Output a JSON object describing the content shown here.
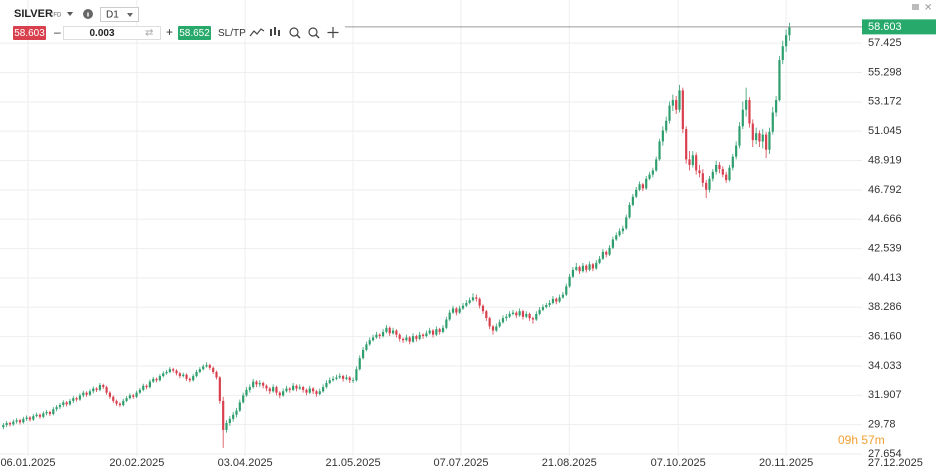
{
  "toolbar": {
    "symbol": "SILVER",
    "instrument_type": "CFD",
    "timeframe": "D1",
    "sell_price": "58.603",
    "volume": "0.003",
    "buy_price": "58.652",
    "sl_tp": "SL/TP"
  },
  "countdown": "09h 57m",
  "chart_data": {
    "type": "candlestick",
    "up_color": "#2f9e6e",
    "down_color": "#d9404e",
    "grid": true,
    "current_price": 58.603,
    "current_price_color": "#26a96a",
    "ylim": [
      27.51,
      60.55
    ],
    "yticks": [
      27.654,
      29.78,
      31.907,
      34.033,
      {
        "value": 36.16,
        "label": "36.160"
      },
      38.286,
      40.413,
      42.539,
      44.666,
      46.792,
      48.919,
      51.045,
      53.172,
      55.298,
      57.425
    ],
    "xlim": [
      -1,
      280
    ],
    "xticks": [
      {
        "value": 7.4,
        "label": "06.01.2025"
      },
      {
        "value": 40.1,
        "label": "20.02.2025"
      },
      {
        "value": 72.6,
        "label": "03.04.2025"
      },
      {
        "value": 105,
        "label": "21.05.2025"
      },
      {
        "value": 137.4,
        "label": "07.07.2025"
      },
      {
        "value": 169.9,
        "label": "21.08.2025"
      },
      {
        "value": 202.6,
        "label": "07.10.2025"
      },
      {
        "value": 235,
        "label": "20.11.2025"
      },
      {
        "value": 267.8,
        "label": "27.12.2025"
      }
    ],
    "candles": [
      [
        29.6,
        29.9,
        29.45,
        29.75
      ],
      [
        29.75,
        30.05,
        29.6,
        29.9
      ],
      [
        29.9,
        30.0,
        29.65,
        29.8
      ],
      [
        29.8,
        30.15,
        29.7,
        30.0
      ],
      [
        30.0,
        30.25,
        29.85,
        30.1
      ],
      [
        30.1,
        30.2,
        29.8,
        29.95
      ],
      [
        29.95,
        30.35,
        29.85,
        30.2
      ],
      [
        30.2,
        30.45,
        30.05,
        30.3
      ],
      [
        30.3,
        30.4,
        30.0,
        30.15
      ],
      [
        30.15,
        30.55,
        30.05,
        30.4
      ],
      [
        30.4,
        30.65,
        30.3,
        30.5
      ],
      [
        30.5,
        30.6,
        30.2,
        30.35
      ],
      [
        30.35,
        30.75,
        30.25,
        30.6
      ],
      [
        30.6,
        30.85,
        30.45,
        30.7
      ],
      [
        30.7,
        30.8,
        30.4,
        30.55
      ],
      [
        30.55,
        31.05,
        30.45,
        30.9
      ],
      [
        30.9,
        31.2,
        30.75,
        31.05
      ],
      [
        31.05,
        31.35,
        30.9,
        31.2
      ],
      [
        31.2,
        31.55,
        31.05,
        31.4
      ],
      [
        31.4,
        31.5,
        31.1,
        31.25
      ],
      [
        31.25,
        31.65,
        31.15,
        31.5
      ],
      [
        31.5,
        31.85,
        31.35,
        31.7
      ],
      [
        31.7,
        31.8,
        31.45,
        31.6
      ],
      [
        31.6,
        32.05,
        31.5,
        31.9
      ],
      [
        31.9,
        32.25,
        31.75,
        32.1
      ],
      [
        32.1,
        32.2,
        31.8,
        31.95
      ],
      [
        31.95,
        32.35,
        31.85,
        32.2
      ],
      [
        32.2,
        32.55,
        32.05,
        32.4
      ],
      [
        32.4,
        32.5,
        32.15,
        32.3
      ],
      [
        32.3,
        32.8,
        32.2,
        32.65
      ],
      [
        32.65,
        32.75,
        32.35,
        32.5
      ],
      [
        32.5,
        32.6,
        31.95,
        32.1
      ],
      [
        32.1,
        32.2,
        31.65,
        31.8
      ],
      [
        31.8,
        31.9,
        31.35,
        31.5
      ],
      [
        31.5,
        31.6,
        31.15,
        31.3
      ],
      [
        31.3,
        31.4,
        31.05,
        31.2
      ],
      [
        31.2,
        31.65,
        31.1,
        31.5
      ],
      [
        31.5,
        31.85,
        31.4,
        31.7
      ],
      [
        31.7,
        32.05,
        31.6,
        31.9
      ],
      [
        31.9,
        32.0,
        31.65,
        31.8
      ],
      [
        31.8,
        32.25,
        31.7,
        32.1
      ],
      [
        32.1,
        32.45,
        32.0,
        32.3
      ],
      [
        32.3,
        32.75,
        32.2,
        32.6
      ],
      [
        32.6,
        32.7,
        32.35,
        32.5
      ],
      [
        32.5,
        33.05,
        32.4,
        32.9
      ],
      [
        32.9,
        33.25,
        32.8,
        33.1
      ],
      [
        33.1,
        33.2,
        32.85,
        33.0
      ],
      [
        33.0,
        33.45,
        32.9,
        33.3
      ],
      [
        33.3,
        33.65,
        33.2,
        33.5
      ],
      [
        33.5,
        33.75,
        33.4,
        33.6
      ],
      [
        33.6,
        33.95,
        33.5,
        33.8
      ],
      [
        33.8,
        33.9,
        33.55,
        33.7
      ],
      [
        33.7,
        33.8,
        33.35,
        33.5
      ],
      [
        33.5,
        33.6,
        33.15,
        33.3
      ],
      [
        33.3,
        33.55,
        33.2,
        33.4
      ],
      [
        33.4,
        33.5,
        32.95,
        33.1
      ],
      [
        33.1,
        33.2,
        32.85,
        33.0
      ],
      [
        33.0,
        33.45,
        32.9,
        33.3
      ],
      [
        33.3,
        33.75,
        33.2,
        33.6
      ],
      [
        33.6,
        33.95,
        33.5,
        33.8
      ],
      [
        33.8,
        34.15,
        33.7,
        34.0
      ],
      [
        34.0,
        34.3,
        33.9,
        34.1
      ],
      [
        34.1,
        34.2,
        33.75,
        33.9
      ],
      [
        33.9,
        34.0,
        33.45,
        33.6
      ],
      [
        33.6,
        33.7,
        33.05,
        33.2
      ],
      [
        33.2,
        33.3,
        31.3,
        31.5
      ],
      [
        31.5,
        31.8,
        28.1,
        29.4
      ],
      [
        29.4,
        30.1,
        29.2,
        29.9
      ],
      [
        29.9,
        30.4,
        29.7,
        30.2
      ],
      [
        30.2,
        30.7,
        30.0,
        30.5
      ],
      [
        30.5,
        31.0,
        30.3,
        30.8
      ],
      [
        30.8,
        31.6,
        30.7,
        31.4
      ],
      [
        31.4,
        32.1,
        31.3,
        31.9
      ],
      [
        31.9,
        32.5,
        31.8,
        32.3
      ],
      [
        32.3,
        32.7,
        32.1,
        32.5
      ],
      [
        32.5,
        33.1,
        32.4,
        32.9
      ],
      [
        32.9,
        33.0,
        32.5,
        32.7
      ],
      [
        32.7,
        33.0,
        32.5,
        32.8
      ],
      [
        32.8,
        32.9,
        32.4,
        32.6
      ],
      [
        32.6,
        32.7,
        32.2,
        32.4
      ],
      [
        32.4,
        32.5,
        32.0,
        32.2
      ],
      [
        32.2,
        32.7,
        32.1,
        32.5
      ],
      [
        32.5,
        32.6,
        31.9,
        32.1
      ],
      [
        32.1,
        32.2,
        31.7,
        31.9
      ],
      [
        31.9,
        32.4,
        31.8,
        32.2
      ],
      [
        32.2,
        32.6,
        32.1,
        32.4
      ],
      [
        32.4,
        32.5,
        32.1,
        32.3
      ],
      [
        32.3,
        32.8,
        32.2,
        32.6
      ],
      [
        32.6,
        32.7,
        32.2,
        32.4
      ],
      [
        32.4,
        32.7,
        32.3,
        32.5
      ],
      [
        32.5,
        32.6,
        32.1,
        32.3
      ],
      [
        32.3,
        32.4,
        31.9,
        32.1
      ],
      [
        32.1,
        32.6,
        32.0,
        32.4
      ],
      [
        32.4,
        32.5,
        32.0,
        32.2
      ],
      [
        32.2,
        32.3,
        31.8,
        32.0
      ],
      [
        32.0,
        32.4,
        31.9,
        32.2
      ],
      [
        32.2,
        32.7,
        32.1,
        32.5
      ],
      [
        32.5,
        33.0,
        32.4,
        32.8
      ],
      [
        32.8,
        33.2,
        32.7,
        33.0
      ],
      [
        33.0,
        33.3,
        32.9,
        33.1
      ],
      [
        33.1,
        33.4,
        33.0,
        33.2
      ],
      [
        33.2,
        33.5,
        33.1,
        33.3
      ],
      [
        33.3,
        33.4,
        32.9,
        33.1
      ],
      [
        33.1,
        33.4,
        33.0,
        33.2
      ],
      [
        33.2,
        33.3,
        32.8,
        33.0
      ],
      [
        33.0,
        33.2,
        32.8,
        33.0
      ],
      [
        33.0,
        34.0,
        32.9,
        33.8
      ],
      [
        33.8,
        34.8,
        33.7,
        34.6
      ],
      [
        34.6,
        35.4,
        34.5,
        35.2
      ],
      [
        35.2,
        35.8,
        35.1,
        35.6
      ],
      [
        35.6,
        36.1,
        35.5,
        35.9
      ],
      [
        35.9,
        36.3,
        35.8,
        36.1
      ],
      [
        36.1,
        36.5,
        36.0,
        36.3
      ],
      [
        36.3,
        36.4,
        36.0,
        36.2
      ],
      [
        36.2,
        36.7,
        36.1,
        36.5
      ],
      [
        36.5,
        37.0,
        36.4,
        36.8
      ],
      [
        36.8,
        36.9,
        36.2,
        36.4
      ],
      [
        36.4,
        36.8,
        36.3,
        36.6
      ],
      [
        36.6,
        36.7,
        36.1,
        36.3
      ],
      [
        36.3,
        36.4,
        35.8,
        36.0
      ],
      [
        36.0,
        36.1,
        35.7,
        35.9
      ],
      [
        35.9,
        36.3,
        35.8,
        36.1
      ],
      [
        36.1,
        36.2,
        35.6,
        35.8
      ],
      [
        35.8,
        36.4,
        35.7,
        36.2
      ],
      [
        36.2,
        36.3,
        35.8,
        36.0
      ],
      [
        36.0,
        36.5,
        35.9,
        36.3
      ],
      [
        36.3,
        36.4,
        36.0,
        36.2
      ],
      [
        36.2,
        36.6,
        36.1,
        36.4
      ],
      [
        36.4,
        36.8,
        36.3,
        36.6
      ],
      [
        36.6,
        36.7,
        36.1,
        36.3
      ],
      [
        36.3,
        36.9,
        36.2,
        36.7
      ],
      [
        36.7,
        36.8,
        36.3,
        36.5
      ],
      [
        36.5,
        37.0,
        36.4,
        36.8
      ],
      [
        36.8,
        37.6,
        36.7,
        37.4
      ],
      [
        37.4,
        38.1,
        37.3,
        37.9
      ],
      [
        37.9,
        38.4,
        37.8,
        38.2
      ],
      [
        38.2,
        38.3,
        37.7,
        37.9
      ],
      [
        37.9,
        38.4,
        37.8,
        38.2
      ],
      [
        38.2,
        38.6,
        38.1,
        38.4
      ],
      [
        38.4,
        38.8,
        38.3,
        38.6
      ],
      [
        38.6,
        39.0,
        38.5,
        38.8
      ],
      [
        38.8,
        39.3,
        38.7,
        39.0
      ],
      [
        39.0,
        39.2,
        38.7,
        38.9
      ],
      [
        38.9,
        39.0,
        38.2,
        38.4
      ],
      [
        38.4,
        38.5,
        37.8,
        38.0
      ],
      [
        38.0,
        38.1,
        37.3,
        37.5
      ],
      [
        37.5,
        37.6,
        36.7,
        36.9
      ],
      [
        36.9,
        37.0,
        36.3,
        36.6
      ],
      [
        36.6,
        37.1,
        36.5,
        36.9
      ],
      [
        36.9,
        37.4,
        36.8,
        37.2
      ],
      [
        37.2,
        37.7,
        37.1,
        37.5
      ],
      [
        37.5,
        37.8,
        37.3,
        37.6
      ],
      [
        37.6,
        38.0,
        37.5,
        37.8
      ],
      [
        37.8,
        38.1,
        37.7,
        37.9
      ],
      [
        37.9,
        38.0,
        37.5,
        37.7
      ],
      [
        37.7,
        38.2,
        37.6,
        38.0
      ],
      [
        38.0,
        38.1,
        37.4,
        37.6
      ],
      [
        37.6,
        38.0,
        37.5,
        37.8
      ],
      [
        37.8,
        37.9,
        37.3,
        37.5
      ],
      [
        37.5,
        37.6,
        37.1,
        37.4
      ],
      [
        37.4,
        38.0,
        37.3,
        37.8
      ],
      [
        37.8,
        38.3,
        37.7,
        38.1
      ],
      [
        38.1,
        38.5,
        38.0,
        38.3
      ],
      [
        38.3,
        38.6,
        38.2,
        38.45
      ],
      [
        38.45,
        38.8,
        38.3,
        38.6
      ],
      [
        38.6,
        39.1,
        38.5,
        38.9
      ],
      [
        38.9,
        39.0,
        38.5,
        38.7
      ],
      [
        38.7,
        39.2,
        38.6,
        39.0
      ],
      [
        39.0,
        39.4,
        38.9,
        39.2
      ],
      [
        39.2,
        40.0,
        39.1,
        39.8
      ],
      [
        39.8,
        40.7,
        39.7,
        40.5
      ],
      [
        40.5,
        41.2,
        40.4,
        41.0
      ],
      [
        41.0,
        41.5,
        40.9,
        41.2
      ],
      [
        41.2,
        41.3,
        40.7,
        40.9
      ],
      [
        40.9,
        41.5,
        40.8,
        41.3
      ],
      [
        41.3,
        41.4,
        40.8,
        41.0
      ],
      [
        41.0,
        41.6,
        40.9,
        41.4
      ],
      [
        41.4,
        41.5,
        40.9,
        41.1
      ],
      [
        41.1,
        41.7,
        41.0,
        41.5
      ],
      [
        41.5,
        42.0,
        41.4,
        41.8
      ],
      [
        41.8,
        42.5,
        41.7,
        42.3
      ],
      [
        42.3,
        42.4,
        41.9,
        42.1
      ],
      [
        42.1,
        42.8,
        42.0,
        42.6
      ],
      [
        42.6,
        43.4,
        42.5,
        43.2
      ],
      [
        43.2,
        43.7,
        43.1,
        43.5
      ],
      [
        43.5,
        44.0,
        43.4,
        43.8
      ],
      [
        43.8,
        44.2,
        43.6,
        44.0
      ],
      [
        44.0,
        45.0,
        43.9,
        44.8
      ],
      [
        44.8,
        45.9,
        44.7,
        45.7
      ],
      [
        45.7,
        46.5,
        45.6,
        46.3
      ],
      [
        46.3,
        47.0,
        46.2,
        46.8
      ],
      [
        46.8,
        47.4,
        46.7,
        47.2
      ],
      [
        47.2,
        47.3,
        46.7,
        46.9
      ],
      [
        46.9,
        47.8,
        46.8,
        47.6
      ],
      [
        47.6,
        48.1,
        47.5,
        47.9
      ],
      [
        47.9,
        48.4,
        47.7,
        48.2
      ],
      [
        48.2,
        49.2,
        48.1,
        49.0
      ],
      [
        49.0,
        50.5,
        48.9,
        50.3
      ],
      [
        50.3,
        51.4,
        50.0,
        51.1
      ],
      [
        51.1,
        52.1,
        50.9,
        51.8
      ],
      [
        51.8,
        53.2,
        51.6,
        52.9
      ],
      [
        52.9,
        53.7,
        52.5,
        53.3
      ],
      [
        53.3,
        53.6,
        52.3,
        52.6
      ],
      [
        52.6,
        54.4,
        52.4,
        54.0
      ],
      [
        54.0,
        54.2,
        50.9,
        51.2
      ],
      [
        51.2,
        51.4,
        48.7,
        49.0
      ],
      [
        49.0,
        49.6,
        48.2,
        48.6
      ],
      [
        48.6,
        49.6,
        48.4,
        49.3
      ],
      [
        49.3,
        49.5,
        47.9,
        48.2
      ],
      [
        48.2,
        48.6,
        47.7,
        48.0
      ],
      [
        48.0,
        48.3,
        47.0,
        47.3
      ],
      [
        47.3,
        47.5,
        46.2,
        46.8
      ],
      [
        46.8,
        47.8,
        46.6,
        47.6
      ],
      [
        47.6,
        48.3,
        47.4,
        48.1
      ],
      [
        48.1,
        48.9,
        47.9,
        48.6
      ],
      [
        48.6,
        48.8,
        48.0,
        48.3
      ],
      [
        48.3,
        48.5,
        47.7,
        47.9
      ],
      [
        47.9,
        48.1,
        47.3,
        47.5
      ],
      [
        47.5,
        48.6,
        47.4,
        48.4
      ],
      [
        48.4,
        49.4,
        48.2,
        49.2
      ],
      [
        49.2,
        50.3,
        49.0,
        50.0
      ],
      [
        50.0,
        51.7,
        49.8,
        51.4
      ],
      [
        51.4,
        53.2,
        51.2,
        52.6
      ],
      [
        52.6,
        54.2,
        52.1,
        53.3
      ],
      [
        53.3,
        53.5,
        51.3,
        51.6
      ],
      [
        51.6,
        51.9,
        49.9,
        50.4
      ],
      [
        50.4,
        51.3,
        50.1,
        50.9
      ],
      [
        50.9,
        51.1,
        49.9,
        50.3
      ],
      [
        50.3,
        51.2,
        49.8,
        50.8
      ],
      [
        50.8,
        51.0,
        49.1,
        49.7
      ],
      [
        49.7,
        51.3,
        49.4,
        51.0
      ],
      [
        51.0,
        52.8,
        50.8,
        52.4
      ],
      [
        52.4,
        53.6,
        52.1,
        53.3
      ],
      [
        53.3,
        56.5,
        53.2,
        56.2
      ],
      [
        56.2,
        57.6,
        55.9,
        57.2
      ],
      [
        57.2,
        58.4,
        56.8,
        58.0
      ],
      [
        58.0,
        58.9,
        57.6,
        58.603
      ]
    ]
  }
}
